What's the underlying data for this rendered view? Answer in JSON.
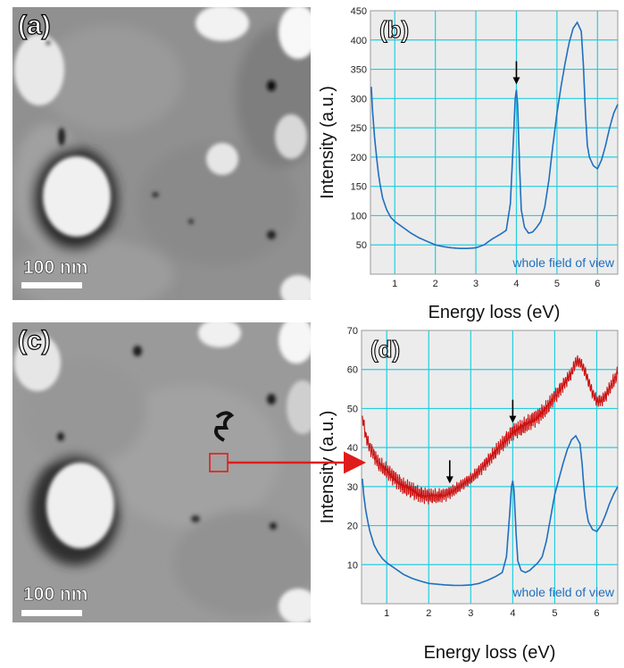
{
  "figure": {
    "panel_a_label": "(a)",
    "panel_c_label": "(c)",
    "scale_a": "100 nm",
    "scale_c": "100 nm"
  },
  "colors": {
    "blue": "#1f6fbf",
    "red": "#cc1111",
    "grid": "#22cfe0",
    "plot_bg": "#ececec",
    "arrow_red": "#e01b1b"
  },
  "chart_data": [
    {
      "type": "line",
      "panel": "(b)",
      "panel_label": "(b)",
      "xlabel": "Energy loss (eV)",
      "ylabel": "Intensity (a.u.)",
      "xlim": [
        0.4,
        6.5
      ],
      "ylim": [
        0,
        450
      ],
      "xticks": [
        1,
        2,
        3,
        4,
        5,
        6
      ],
      "yticks": [
        0,
        50,
        100,
        150,
        200,
        250,
        300,
        350,
        400,
        450
      ],
      "grid": true,
      "annotation": "whole field of view",
      "arrows_at": [
        4.0
      ],
      "series": [
        {
          "color": "#1f6fbf",
          "x": [
            0.42,
            0.45,
            0.5,
            0.55,
            0.6,
            0.65,
            0.7,
            0.8,
            0.9,
            1.0,
            1.2,
            1.4,
            1.6,
            1.8,
            2.0,
            2.2,
            2.4,
            2.6,
            2.8,
            3.0,
            3.2,
            3.4,
            3.6,
            3.75,
            3.85,
            3.92,
            3.97,
            4.0,
            4.03,
            4.08,
            4.12,
            4.2,
            4.3,
            4.4,
            4.5,
            4.6,
            4.7,
            4.8,
            4.9,
            5.0,
            5.1,
            5.2,
            5.3,
            5.4,
            5.5,
            5.6,
            5.65,
            5.7,
            5.75,
            5.8,
            5.9,
            6.0,
            6.1,
            6.2,
            6.3,
            6.4,
            6.5
          ],
          "values": [
            320,
            280,
            235,
            200,
            170,
            148,
            130,
            110,
            97,
            90,
            80,
            70,
            62,
            56,
            50,
            47,
            45,
            44,
            44,
            45,
            50,
            60,
            68,
            75,
            120,
            220,
            300,
            315,
            290,
            180,
            110,
            80,
            70,
            72,
            80,
            90,
            115,
            160,
            220,
            275,
            320,
            360,
            395,
            420,
            430,
            415,
            360,
            280,
            220,
            200,
            185,
            180,
            195,
            220,
            250,
            275,
            290
          ]
        }
      ]
    },
    {
      "type": "line",
      "panel": "(d)",
      "panel_label": "(d)",
      "xlabel": "Energy loss (eV)",
      "ylabel": "Intensity (a.u.)",
      "xlim": [
        0.4,
        6.5
      ],
      "ylim": [
        0,
        70
      ],
      "xticks": [
        1,
        2,
        3,
        4,
        5,
        6
      ],
      "yticks": [
        0,
        10,
        20,
        30,
        40,
        50,
        60,
        70
      ],
      "grid": true,
      "annotation": "whole field of view",
      "arrows_at": [
        2.5,
        4.0
      ],
      "series": [
        {
          "color": "#cc1111",
          "x": [
            0.42,
            0.5,
            0.6,
            0.7,
            0.8,
            1.0,
            1.2,
            1.4,
            1.6,
            1.8,
            2.0,
            2.2,
            2.4,
            2.6,
            2.8,
            3.0,
            3.2,
            3.4,
            3.6,
            3.8,
            4.0,
            4.2,
            4.4,
            4.6,
            4.8,
            5.0,
            5.2,
            5.4,
            5.5,
            5.6,
            5.7,
            5.8,
            5.9,
            6.0,
            6.1,
            6.2,
            6.3,
            6.4,
            6.5
          ],
          "values": [
            48,
            43,
            40,
            38,
            36,
            34,
            32,
            30,
            29,
            28,
            27.5,
            27.5,
            28,
            29,
            30.5,
            32,
            34,
            36.5,
            39,
            41.5,
            44,
            45,
            46.5,
            48,
            50,
            53,
            56,
            59,
            62,
            62,
            60,
            57,
            54,
            52,
            52,
            53,
            55,
            57,
            59
          ],
          "noise": 2.4
        },
        {
          "color": "#1f6fbf",
          "x": [
            0.42,
            0.45,
            0.5,
            0.55,
            0.6,
            0.7,
            0.8,
            0.9,
            1.0,
            1.2,
            1.4,
            1.6,
            1.8,
            2.0,
            2.2,
            2.4,
            2.6,
            2.8,
            3.0,
            3.2,
            3.4,
            3.6,
            3.75,
            3.85,
            3.92,
            3.97,
            4.0,
            4.03,
            4.08,
            4.12,
            4.2,
            4.3,
            4.4,
            4.5,
            4.6,
            4.7,
            4.8,
            4.9,
            5.0,
            5.1,
            5.2,
            5.3,
            5.4,
            5.5,
            5.6,
            5.65,
            5.7,
            5.75,
            5.8,
            5.9,
            6.0,
            6.1,
            6.2,
            6.3,
            6.4,
            6.5
          ],
          "values": [
            32,
            28,
            24,
            21,
            18.5,
            15,
            13,
            11.5,
            10.5,
            9,
            7.5,
            6.5,
            5.8,
            5.2,
            5,
            4.8,
            4.7,
            4.7,
            4.8,
            5.2,
            6,
            7,
            8,
            12,
            22,
            30,
            31.5,
            29,
            18,
            11,
            8.5,
            8,
            8.5,
            9.5,
            10.5,
            12,
            16,
            22,
            28,
            32,
            36,
            39.5,
            42,
            43,
            41,
            36,
            29,
            24,
            21,
            19,
            18.5,
            20,
            22.5,
            25.5,
            28,
            30
          ]
        }
      ]
    }
  ]
}
